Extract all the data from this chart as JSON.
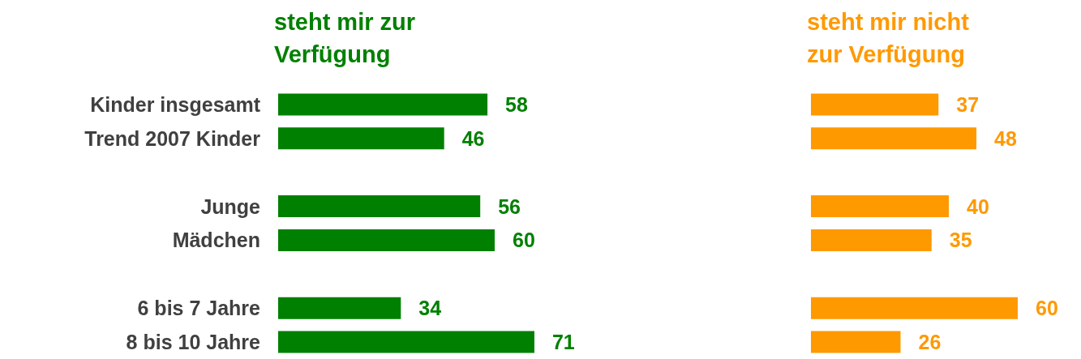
{
  "chart_data": [
    {
      "type": "bar",
      "orientation": "horizontal",
      "title": "steht mir zur Verfügung",
      "categories": [
        "Kinder insgesamt",
        "Trend 2007 Kinder",
        null,
        "Junge",
        "Mädchen",
        null,
        "6 bis 7 Jahre",
        "8 bis 10 Jahre"
      ],
      "series": [
        {
          "color": "#008000",
          "values": [
            58,
            46,
            null,
            56,
            60,
            null,
            34,
            71
          ]
        }
      ],
      "data_labels": true,
      "tick_labels": "y"
    },
    {
      "type": "bar",
      "orientation": "horizontal",
      "title": "steht mir nicht zur Verfügung",
      "categories": [
        null,
        null,
        null,
        null,
        null,
        null,
        null,
        null
      ],
      "series": [
        {
          "color": "#ff9900",
          "values": [
            37,
            48,
            null,
            40,
            35,
            null,
            60,
            26
          ]
        }
      ],
      "data_labels": true,
      "tick_labels": false
    }
  ]
}
